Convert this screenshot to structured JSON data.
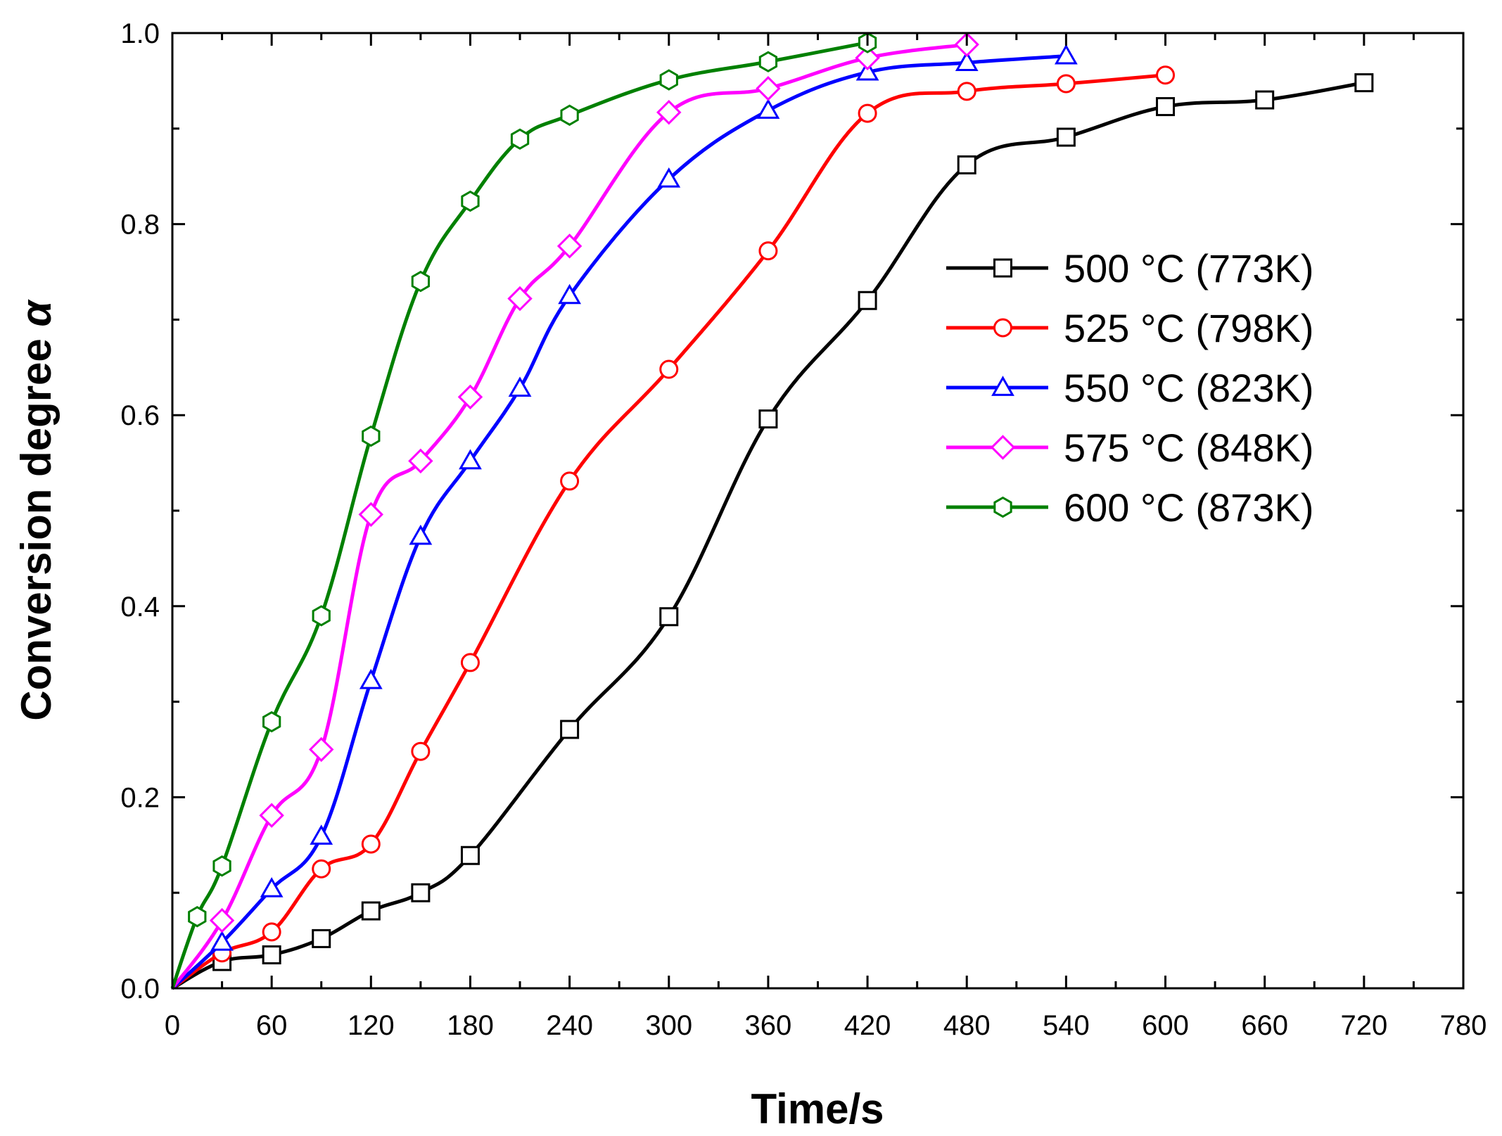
{
  "chart_data": {
    "type": "line",
    "title": "",
    "xlabel": "Time/s",
    "ylabel_text": "Conversion degree ",
    "ylabel_symbol": "α",
    "xlim": [
      0,
      780
    ],
    "ylim": [
      0,
      1.0
    ],
    "x_major_ticks": [
      0,
      60,
      120,
      180,
      240,
      300,
      360,
      420,
      480,
      540,
      600,
      660,
      720,
      780
    ],
    "x_tick_labels": [
      "0",
      "60",
      "120",
      "180",
      "240",
      "300",
      "360",
      "420",
      "480",
      "540",
      "600",
      "660",
      "720",
      "780"
    ],
    "y_major_ticks": [
      0,
      0.2,
      0.4,
      0.6,
      0.8,
      1.0
    ],
    "y_tick_labels": [
      "0.0",
      "0.2",
      "0.4",
      "0.6",
      "0.8",
      "1.0"
    ],
    "grid": false,
    "legend_position": "center-right",
    "series": [
      {
        "name": "500 °C (773K)",
        "color": "#000000",
        "marker": "square",
        "x": [
          0,
          30,
          60,
          90,
          120,
          150,
          180,
          240,
          300,
          360,
          420,
          480,
          540,
          600,
          660,
          720
        ],
        "y": [
          0.0,
          0.028,
          0.035,
          0.052,
          0.081,
          0.1,
          0.139,
          0.271,
          0.389,
          0.596,
          0.72,
          0.862,
          0.891,
          0.923,
          0.93,
          0.948
        ]
      },
      {
        "name": "525 °C (798K)",
        "color": "#ff0000",
        "marker": "circle",
        "x": [
          0,
          30,
          60,
          90,
          120,
          150,
          180,
          240,
          300,
          360,
          420,
          480,
          540,
          600
        ],
        "y": [
          0.0,
          0.037,
          0.059,
          0.125,
          0.151,
          0.248,
          0.341,
          0.531,
          0.648,
          0.772,
          0.916,
          0.939,
          0.947,
          0.956
        ]
      },
      {
        "name": "550 °C (823K)",
        "color": "#0000ff",
        "marker": "triangle",
        "x": [
          0,
          30,
          60,
          90,
          120,
          150,
          180,
          210,
          240,
          300,
          360,
          420,
          480,
          540
        ],
        "y": [
          0.0,
          0.048,
          0.104,
          0.159,
          0.322,
          0.473,
          0.552,
          0.628,
          0.725,
          0.847,
          0.919,
          0.959,
          0.969,
          0.976
        ]
      },
      {
        "name": "575 °C (848K)",
        "color": "#ff00ff",
        "marker": "diamond",
        "x": [
          0,
          30,
          60,
          90,
          120,
          150,
          180,
          210,
          240,
          300,
          360,
          420,
          480
        ],
        "y": [
          0.0,
          0.071,
          0.181,
          0.25,
          0.496,
          0.552,
          0.619,
          0.722,
          0.777,
          0.917,
          0.942,
          0.974,
          0.988
        ]
      },
      {
        "name": "600 °C (873K)",
        "color": "#008000",
        "marker": "hexagon",
        "x": [
          0,
          15,
          30,
          60,
          90,
          120,
          150,
          180,
          210,
          240,
          300,
          360,
          420
        ],
        "y": [
          0.0,
          0.075,
          0.128,
          0.279,
          0.39,
          0.578,
          0.74,
          0.824,
          0.889,
          0.914,
          0.951,
          0.97,
          0.99
        ]
      }
    ]
  }
}
